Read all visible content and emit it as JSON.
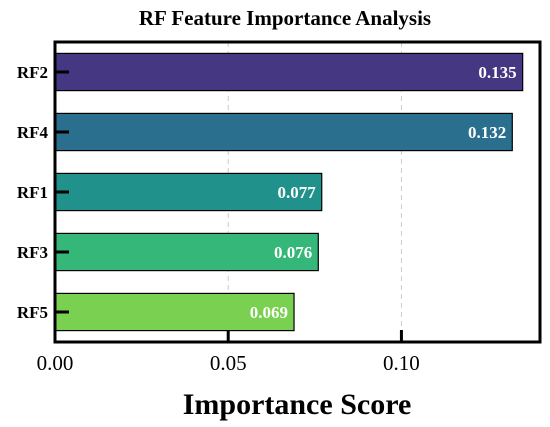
{
  "chart_data": {
    "type": "bar",
    "orientation": "horizontal",
    "title": "RF Feature Importance Analysis",
    "xlabel": "Importance Score",
    "ylabel": "",
    "categories": [
      "RF2",
      "RF4",
      "RF1",
      "RF3",
      "RF5"
    ],
    "values": [
      0.135,
      0.132,
      0.077,
      0.076,
      0.069
    ],
    "value_labels": [
      "0.135",
      "0.132",
      "0.077",
      "0.076",
      "0.069"
    ],
    "bar_colors": [
      "#453781",
      "#2a6f8e",
      "#21918c",
      "#35b779",
      "#7ad151"
    ],
    "xlim": [
      0,
      0.14
    ],
    "xticks": [
      0.0,
      0.05,
      0.1
    ],
    "xtick_labels": [
      "0.00",
      "0.05",
      "0.10"
    ],
    "grid": "vertical dashed",
    "legend": "none"
  }
}
